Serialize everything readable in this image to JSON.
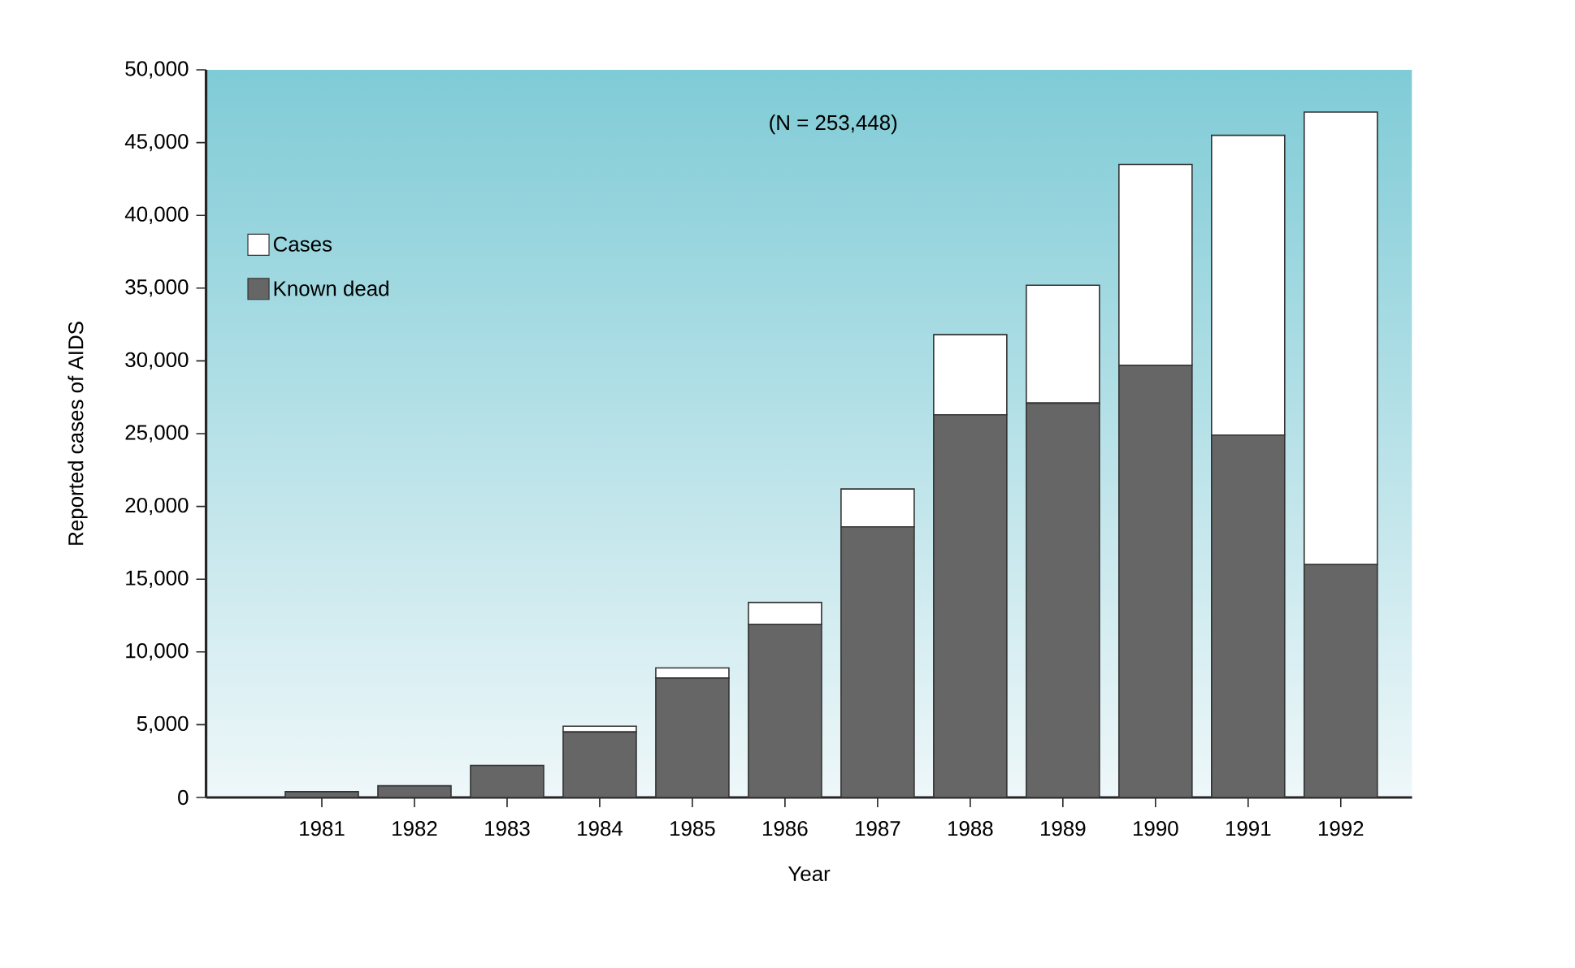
{
  "chart_data": {
    "type": "bar",
    "stacked": true,
    "xlabel": "Year",
    "ylabel": "Reported cases of AIDS",
    "annotations": [
      "(N = 253,448)"
    ],
    "categories": [
      "1981",
      "1982",
      "1983",
      "1984",
      "1985",
      "1986",
      "1987",
      "1988",
      "1989",
      "1990",
      "1991",
      "1992"
    ],
    "series": [
      {
        "name": "Known dead",
        "color": "#666666",
        "values": [
          400,
          800,
          2200,
          4500,
          8200,
          11900,
          18600,
          26300,
          27100,
          29700,
          24900,
          16000
        ]
      },
      {
        "name": "Cases",
        "color": "#ffffff",
        "values": [
          0,
          0,
          0,
          400,
          700,
          1500,
          2600,
          5500,
          8100,
          13800,
          20600,
          31100
        ]
      }
    ],
    "ylim": [
      0,
      50000
    ],
    "yticks": [
      {
        "value": 0,
        "label": "0"
      },
      {
        "value": 5000,
        "label": "5,000"
      },
      {
        "value": 10000,
        "label": "10,000"
      },
      {
        "value": 15000,
        "label": "15,000"
      },
      {
        "value": 20000,
        "label": "20,000"
      },
      {
        "value": 25000,
        "label": "25,000"
      },
      {
        "value": 30000,
        "label": "30,000"
      },
      {
        "value": 35000,
        "label": "35,000"
      },
      {
        "value": 40000,
        "label": "40,000"
      },
      {
        "value": 45000,
        "label": "45,000"
      },
      {
        "value": 50000,
        "label": "50,000"
      }
    ],
    "legend": "top left",
    "grid": false
  }
}
